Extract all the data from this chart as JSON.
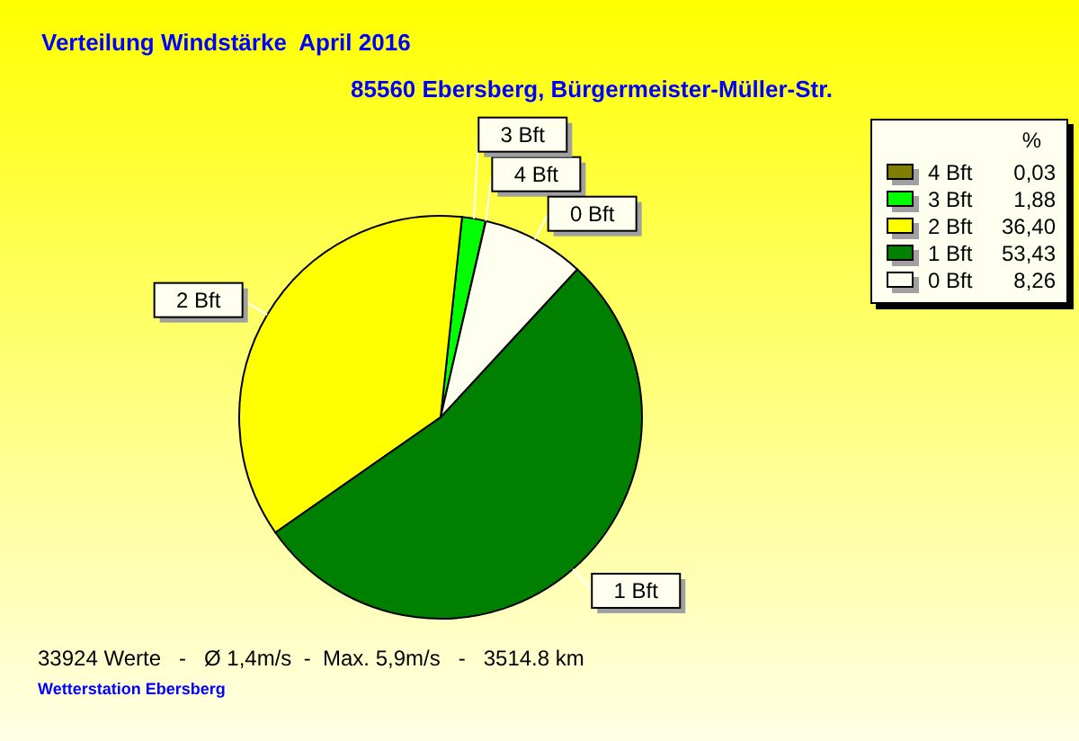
{
  "chart_data": {
    "type": "pie",
    "title": "Verteilung Windstärke  April 2016",
    "subtitle": "85560 Ebersberg, Bürgermeister-Müller-Str.",
    "legend_title": "%",
    "categories": [
      "4 Bft",
      "3 Bft",
      "2 Bft",
      "1 Bft",
      "0 Bft"
    ],
    "values": [
      0.03,
      1.88,
      36.4,
      53.43,
      8.26
    ],
    "colors": [
      "#808000",
      "#00ff00",
      "#ffff00",
      "#008000",
      "#fffff0"
    ],
    "value_labels": [
      "0,03",
      "1,88",
      "36,40",
      "53,43",
      "8,26"
    ],
    "legend": "top right",
    "annotations": [
      "33924 Werte   -   Ø 1,4m/s  -  Max. 5,9m/s   -   3514.8 km",
      "Wetterstation Ebersberg"
    ]
  }
}
